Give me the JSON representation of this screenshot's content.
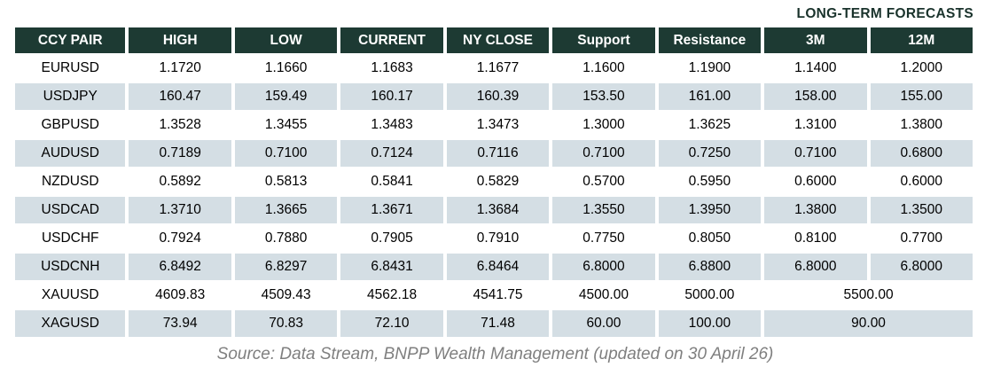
{
  "forecast_label": "LONG-TERM FORECASTS",
  "table": {
    "columns": [
      "CCY PAIR",
      "HIGH",
      "LOW",
      "CURRENT",
      "NY CLOSE",
      "Support",
      "Resistance",
      "3M",
      "12M"
    ],
    "rows": [
      {
        "cells": [
          "EURUSD",
          "1.1720",
          "1.1660",
          "1.1683",
          "1.1677",
          "1.1600",
          "1.1900",
          "1.1400",
          "1.2000"
        ],
        "span_last_two": false
      },
      {
        "cells": [
          "USDJPY",
          "160.47",
          "159.49",
          "160.17",
          "160.39",
          "153.50",
          "161.00",
          "158.00",
          "155.00"
        ],
        "span_last_two": false
      },
      {
        "cells": [
          "GBPUSD",
          "1.3528",
          "1.3455",
          "1.3483",
          "1.3473",
          "1.3000",
          "1.3625",
          "1.3100",
          "1.3800"
        ],
        "span_last_two": false
      },
      {
        "cells": [
          "AUDUSD",
          "0.7189",
          "0.7100",
          "0.7124",
          "0.7116",
          "0.7100",
          "0.7250",
          "0.7100",
          "0.6800"
        ],
        "span_last_two": false
      },
      {
        "cells": [
          "NZDUSD",
          "0.5892",
          "0.5813",
          "0.5841",
          "0.5829",
          "0.5700",
          "0.5950",
          "0.6000",
          "0.6000"
        ],
        "span_last_two": false
      },
      {
        "cells": [
          "USDCAD",
          "1.3710",
          "1.3665",
          "1.3671",
          "1.3684",
          "1.3550",
          "1.3950",
          "1.3800",
          "1.3500"
        ],
        "span_last_two": false
      },
      {
        "cells": [
          "USDCHF",
          "0.7924",
          "0.7880",
          "0.7905",
          "0.7910",
          "0.7750",
          "0.8050",
          "0.8100",
          "0.7700"
        ],
        "span_last_two": false
      },
      {
        "cells": [
          "USDCNH",
          "6.8492",
          "6.8297",
          "6.8431",
          "6.8464",
          "6.8000",
          "6.8800",
          "6.8000",
          "6.8000"
        ],
        "span_last_two": false
      },
      {
        "cells": [
          "XAUUSD",
          "4609.83",
          "4509.43",
          "4562.18",
          "4541.75",
          "4500.00",
          "5000.00",
          "5500.00"
        ],
        "span_last_two": true
      },
      {
        "cells": [
          "XAGUSD",
          "73.94",
          "70.83",
          "72.10",
          "71.48",
          "60.00",
          "100.00",
          "90.00"
        ],
        "span_last_two": true
      }
    ]
  },
  "source": "Source: Data Stream, BNPP Wealth Management (updated on 30 April 26)",
  "colors": {
    "header_bg": "#1d3a33",
    "header_text": "#ffffff",
    "row_alt_bg": "#d4dee4",
    "forecast_label_text": "#1a332c",
    "source_text": "#7f7f7f"
  }
}
